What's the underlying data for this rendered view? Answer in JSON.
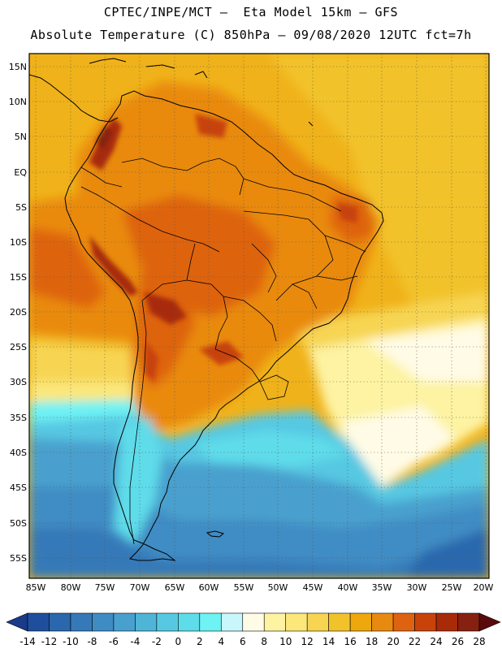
{
  "header": {
    "title_line1": "CPTEC/INPE/MCT –  Eta Model 15km – GFS",
    "title_line2": "Absolute Temperature (C) 850hPa – 09/08/2020 12UTC fct=7h"
  },
  "map": {
    "region": "South America",
    "lat_labels": [
      "15N",
      "10N",
      "5N",
      "EQ",
      "5S",
      "10S",
      "15S",
      "20S",
      "25S",
      "30S",
      "35S",
      "40S",
      "45S",
      "50S",
      "55S"
    ],
    "lon_labels": [
      "85W",
      "80W",
      "75W",
      "70W",
      "65W",
      "60W",
      "55W",
      "50W",
      "45W",
      "40W",
      "35W",
      "30W",
      "25W",
      "20W"
    ]
  },
  "colorbar": {
    "ticks": [
      "-14",
      "-12",
      "-10",
      "-8",
      "-6",
      "-4",
      "-2",
      "0",
      "2",
      "4",
      "6",
      "8",
      "10",
      "12",
      "14",
      "16",
      "18",
      "20",
      "22",
      "24",
      "26",
      "28"
    ],
    "colors": [
      "#1a3a8a",
      "#1f4f9c",
      "#2a67ad",
      "#3579b8",
      "#3f8cc4",
      "#48a0ce",
      "#4fb5d8",
      "#56c8e2",
      "#5edcea",
      "#6ef2f4",
      "#c9f6fb",
      "#fffbe6",
      "#fdf3a2",
      "#fbe77a",
      "#f7d552",
      "#f2c22b",
      "#eea80e",
      "#e98a10",
      "#de6310",
      "#c8430a",
      "#a82a08",
      "#862010",
      "#5a0a0a"
    ]
  }
}
